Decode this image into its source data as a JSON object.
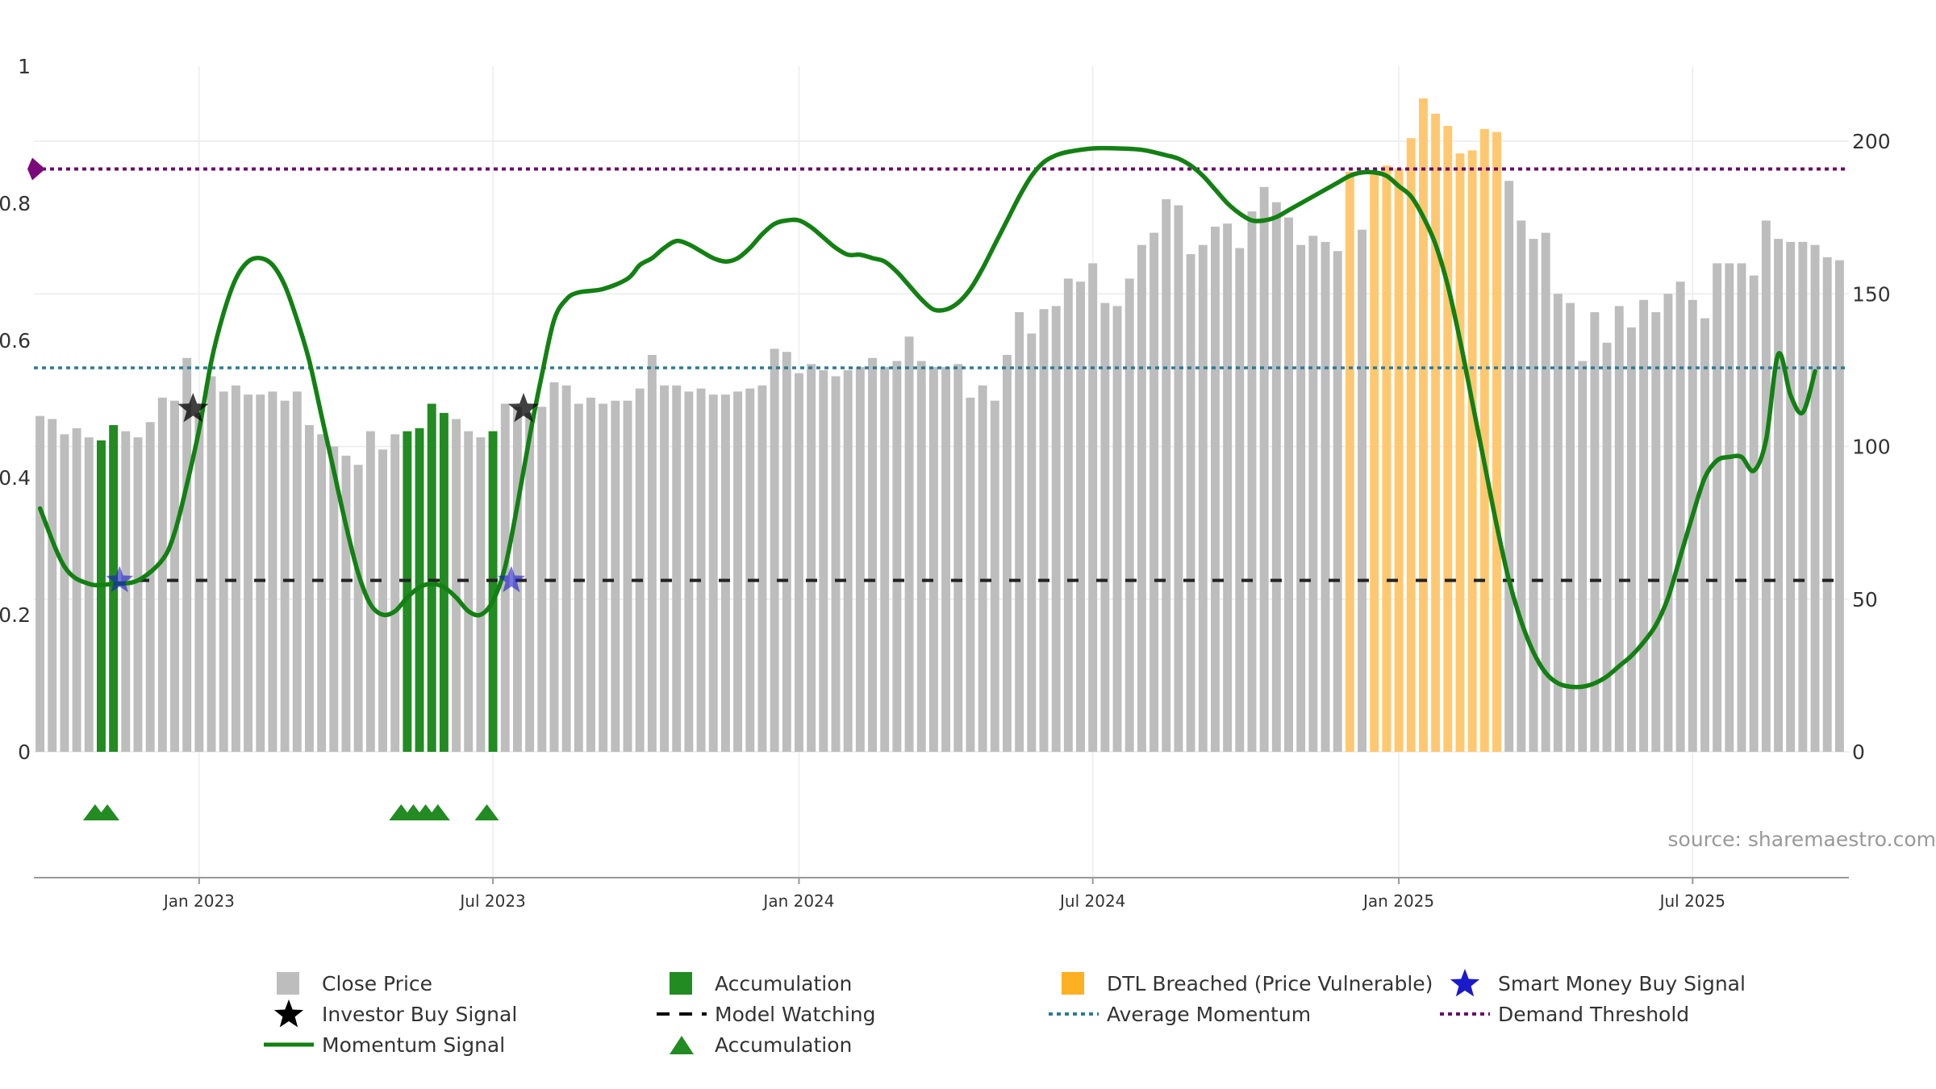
{
  "chart_data": {
    "type": "bar",
    "title": "",
    "xlabel": "",
    "ylabel_left": "",
    "ylabel_right": "",
    "x_ticks": [
      "Jan 2023",
      "Jul 2023",
      "Jan 2024",
      "Jul 2024",
      "Jan 2025",
      "Jul 2025"
    ],
    "x_tick_positions": [
      13,
      37,
      62,
      86,
      111,
      135
    ],
    "left_axis": {
      "ticks": [
        "0",
        "0.2",
        "0.4",
        "0.6",
        "0.8",
        "1"
      ],
      "range": [
        0,
        1
      ]
    },
    "right_axis": {
      "ticks": [
        "0",
        "50",
        "100",
        "150",
        "200"
      ],
      "range": [
        0,
        225
      ]
    },
    "price_bar_count": 148,
    "close_price": [
      110,
      109,
      104,
      106,
      103,
      102,
      107,
      105,
      103,
      108,
      116,
      115,
      129,
      111,
      123,
      118,
      120,
      117,
      117,
      118,
      115,
      118,
      107,
      104,
      100,
      97,
      94,
      105,
      99,
      104,
      105,
      106,
      114,
      111,
      109,
      105,
      103,
      105,
      114,
      113,
      111,
      113,
      121,
      120,
      114,
      116,
      114,
      115,
      115,
      119,
      130,
      120,
      120,
      118,
      119,
      117,
      117,
      118,
      119,
      120,
      132,
      131,
      124,
      127,
      125,
      123,
      125,
      126,
      129,
      126,
      128,
      136,
      128,
      126,
      126,
      127,
      116,
      120,
      115,
      130,
      144,
      137,
      145,
      146,
      155,
      154,
      160,
      147,
      146,
      155,
      166,
      170,
      181,
      179,
      163,
      166,
      172,
      173,
      165,
      177,
      185,
      180,
      175,
      166,
      169,
      167,
      164,
      190,
      171,
      192,
      192,
      192,
      201,
      214,
      209,
      205,
      196,
      197,
      204,
      180,
      187,
      174,
      168,
      170,
      150,
      147,
      128,
      144,
      134,
      146,
      139,
      148,
      144,
      150,
      154,
      148,
      142,
      160,
      160,
      160,
      156,
      174,
      168,
      167,
      167,
      166,
      162,
      161
    ],
    "bar_categories": {
      "accumulation_indices": [
        5,
        6,
        30,
        31,
        32,
        33,
        37
      ],
      "dtl_breached_indices": [
        107,
        109,
        110,
        111,
        112,
        113,
        114,
        115,
        116,
        117,
        118,
        119
      ],
      "price_overrides": {
        "109": 190,
        "110": 192,
        "111": 191,
        "119": 203
      }
    },
    "momentum_signal": [
      [
        0,
        0.355
      ],
      [
        2,
        0.27
      ],
      [
        4,
        0.245
      ],
      [
        6,
        0.245
      ],
      [
        8,
        0.25
      ],
      [
        10,
        0.28
      ],
      [
        11,
        0.32
      ],
      [
        12,
        0.39
      ],
      [
        13,
        0.47
      ],
      [
        14,
        0.57
      ],
      [
        15,
        0.64
      ],
      [
        16,
        0.69
      ],
      [
        17,
        0.715
      ],
      [
        18,
        0.72
      ],
      [
        19,
        0.71
      ],
      [
        20,
        0.68
      ],
      [
        21,
        0.63
      ],
      [
        22,
        0.57
      ],
      [
        23,
        0.49
      ],
      [
        24,
        0.41
      ],
      [
        25,
        0.33
      ],
      [
        26,
        0.26
      ],
      [
        27,
        0.215
      ],
      [
        28,
        0.2
      ],
      [
        29,
        0.205
      ],
      [
        30,
        0.225
      ],
      [
        31,
        0.24
      ],
      [
        32,
        0.245
      ],
      [
        33,
        0.24
      ],
      [
        34,
        0.225
      ],
      [
        35,
        0.205
      ],
      [
        36,
        0.2
      ],
      [
        37,
        0.22
      ],
      [
        38,
        0.27
      ],
      [
        39,
        0.36
      ],
      [
        40,
        0.46
      ],
      [
        41,
        0.55
      ],
      [
        42,
        0.63
      ],
      [
        43,
        0.66
      ],
      [
        44,
        0.67
      ],
      [
        46,
        0.675
      ],
      [
        48,
        0.69
      ],
      [
        49,
        0.71
      ],
      [
        50,
        0.72
      ],
      [
        51,
        0.735
      ],
      [
        52,
        0.745
      ],
      [
        53,
        0.74
      ],
      [
        54,
        0.73
      ],
      [
        55,
        0.72
      ],
      [
        56,
        0.715
      ],
      [
        57,
        0.72
      ],
      [
        58,
        0.735
      ],
      [
        59,
        0.755
      ],
      [
        60,
        0.77
      ],
      [
        61,
        0.775
      ],
      [
        62,
        0.775
      ],
      [
        63,
        0.765
      ],
      [
        64,
        0.75
      ],
      [
        65,
        0.735
      ],
      [
        66,
        0.725
      ],
      [
        67,
        0.725
      ],
      [
        68,
        0.72
      ],
      [
        69,
        0.715
      ],
      [
        70,
        0.7
      ],
      [
        71,
        0.68
      ],
      [
        72,
        0.66
      ],
      [
        73,
        0.645
      ],
      [
        74,
        0.645
      ],
      [
        75,
        0.655
      ],
      [
        76,
        0.675
      ],
      [
        77,
        0.705
      ],
      [
        78,
        0.74
      ],
      [
        79,
        0.775
      ],
      [
        80,
        0.81
      ],
      [
        81,
        0.84
      ],
      [
        82,
        0.86
      ],
      [
        83,
        0.87
      ],
      [
        84,
        0.875
      ],
      [
        86,
        0.88
      ],
      [
        88,
        0.88
      ],
      [
        90,
        0.878
      ],
      [
        92,
        0.87
      ],
      [
        93,
        0.865
      ],
      [
        94,
        0.855
      ],
      [
        95,
        0.84
      ],
      [
        96,
        0.82
      ],
      [
        97,
        0.8
      ],
      [
        98,
        0.785
      ],
      [
        99,
        0.775
      ],
      [
        100,
        0.775
      ],
      [
        101,
        0.78
      ],
      [
        102,
        0.79
      ],
      [
        103,
        0.8
      ],
      [
        104,
        0.81
      ],
      [
        105,
        0.82
      ],
      [
        106,
        0.83
      ],
      [
        107,
        0.84
      ],
      [
        108,
        0.845
      ],
      [
        109,
        0.845
      ],
      [
        110,
        0.84
      ],
      [
        111,
        0.825
      ],
      [
        112,
        0.81
      ],
      [
        113,
        0.78
      ],
      [
        114,
        0.74
      ],
      [
        115,
        0.68
      ],
      [
        116,
        0.6
      ],
      [
        117,
        0.51
      ],
      [
        118,
        0.42
      ],
      [
        119,
        0.33
      ],
      [
        120,
        0.25
      ],
      [
        121,
        0.19
      ],
      [
        122,
        0.145
      ],
      [
        123,
        0.115
      ],
      [
        124,
        0.1
      ],
      [
        125,
        0.095
      ],
      [
        126,
        0.095
      ],
      [
        127,
        0.1
      ],
      [
        128,
        0.11
      ],
      [
        129,
        0.125
      ],
      [
        130,
        0.14
      ],
      [
        131,
        0.16
      ],
      [
        132,
        0.185
      ],
      [
        133,
        0.225
      ],
      [
        134,
        0.285
      ],
      [
        135,
        0.345
      ],
      [
        136,
        0.4
      ],
      [
        137,
        0.425
      ],
      [
        138,
        0.43
      ],
      [
        139,
        0.43
      ],
      [
        140,
        0.41
      ],
      [
        141,
        0.455
      ],
      [
        142,
        0.58
      ],
      [
        143,
        0.52
      ],
      [
        144,
        0.495
      ],
      [
        145,
        0.555
      ]
    ],
    "model_watching_level": 0.25,
    "model_watching_start_x": 8,
    "average_momentum_level": 0.56,
    "demand_threshold_level": 0.85,
    "investor_buy_signals": [
      [
        12.5,
        0.5
      ],
      [
        39.5,
        0.5
      ]
    ],
    "smart_money_buy_signals": [
      [
        6.5,
        0.25
      ],
      [
        38.5,
        0.25
      ]
    ],
    "accumulation_markers_x": [
      4.5,
      5.5,
      29.5,
      30.5,
      31.5,
      32.5,
      36.5
    ],
    "legend": [
      {
        "label": "Close Price",
        "swatch": "gray-square"
      },
      {
        "label": "Accumulation",
        "swatch": "green-square"
      },
      {
        "label": "DTL Breached (Price Vulnerable)",
        "swatch": "orange-square"
      },
      {
        "label": "Smart Money Buy Signal",
        "swatch": "blue-star"
      },
      {
        "label": "Investor Buy Signal",
        "swatch": "black-star"
      },
      {
        "label": "Model Watching",
        "swatch": "black-dash"
      },
      {
        "label": "Average Momentum",
        "swatch": "teal-dot"
      },
      {
        "label": "Demand Threshold",
        "swatch": "purple-dot"
      },
      {
        "label": "Momentum Signal",
        "swatch": "green-line"
      },
      {
        "label": "Accumulation",
        "swatch": "green-triangle"
      }
    ],
    "legend_placement": "bottom",
    "grid": true
  },
  "source_text": "source: sharemaestro.com",
  "colors": {
    "price_bar": "#bdbdbd",
    "accumulation": "#228b22",
    "dtl_breached": "#ffc870",
    "momentum": "#138013",
    "model_watching": "#222222",
    "average_momentum": "#2c7a9a",
    "demand_threshold": "#6b0a6b",
    "smart_money": "#1a1acc",
    "investor": "#000000"
  }
}
